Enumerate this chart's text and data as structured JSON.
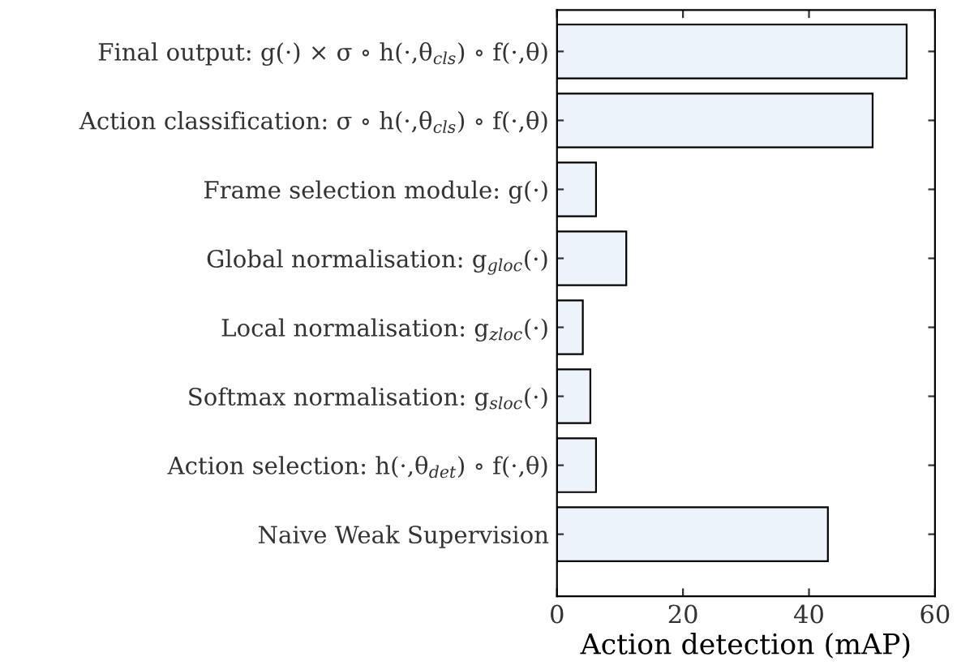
{
  "chart_data": {
    "type": "bar",
    "orientation": "horizontal",
    "categories": [
      "Final output: g(·) × σ ∘ h(·,θ$_{cls}$) ∘ f(·,θ)",
      "Action classification: σ ∘ h(·,θ$_{cls}$) ∘ f(·,θ)",
      "Frame selection module: g(·)",
      "Global normalisation: g$_{gloc}$(·)",
      "Local normalisation: g$_{zloc}$(·)",
      "Softmax normalisation: g$_{sloc}$(·)",
      "Action selection: h(·,θ$_{det}$) ∘ f(·,θ)",
      "Naive Weak Supervision"
    ],
    "values": [
      55.5,
      50.1,
      6.2,
      11.0,
      4.1,
      5.3,
      6.2,
      43.0
    ],
    "color": "#edf3fb",
    "xlabel": "Action detection (mAP)",
    "xlim": [
      0,
      60
    ],
    "xticks": [
      0,
      20,
      40,
      60
    ],
    "grid": false,
    "legend": false
  }
}
